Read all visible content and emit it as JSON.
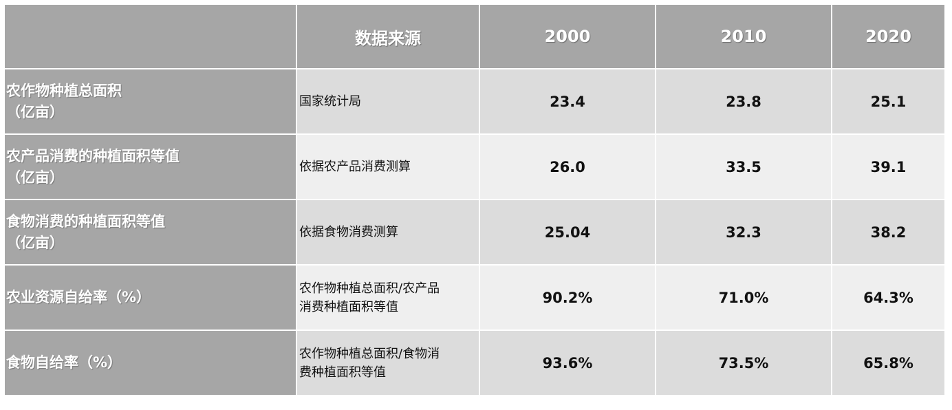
{
  "header": {
    "corner": "",
    "source": "数据来源",
    "years": [
      "2000",
      "2010",
      "2020"
    ]
  },
  "rows": [
    {
      "label": [
        "农作物种植总面积",
        "（亿亩）"
      ],
      "source": [
        "国家统计局"
      ],
      "values": [
        "23.4",
        "23.8",
        "25.1"
      ]
    },
    {
      "label": [
        "农产品消费的种植面积等值",
        "（亿亩）"
      ],
      "source": [
        "依据农产品消费测算"
      ],
      "values": [
        "26.0",
        "33.5",
        "39.1"
      ]
    },
    {
      "label": [
        "食物消费的种植面积等值",
        "（亿亩）"
      ],
      "source": [
        "依据食物消费测算"
      ],
      "values": [
        "25.04",
        "32.3",
        "38.2"
      ]
    },
    {
      "label": [
        "农业资源自给率（%）"
      ],
      "source": [
        "农作物种植总面积/农产品",
        "消费种植面积等值"
      ],
      "values": [
        "90.2%",
        "71.0%",
        "64.3%"
      ]
    },
    {
      "label": [
        "食物自给率（%）"
      ],
      "source": [
        "农作物种植总面积/食物消",
        "费种植面积等值"
      ],
      "values": [
        "93.6%",
        "73.5%",
        "65.8%"
      ]
    }
  ]
}
